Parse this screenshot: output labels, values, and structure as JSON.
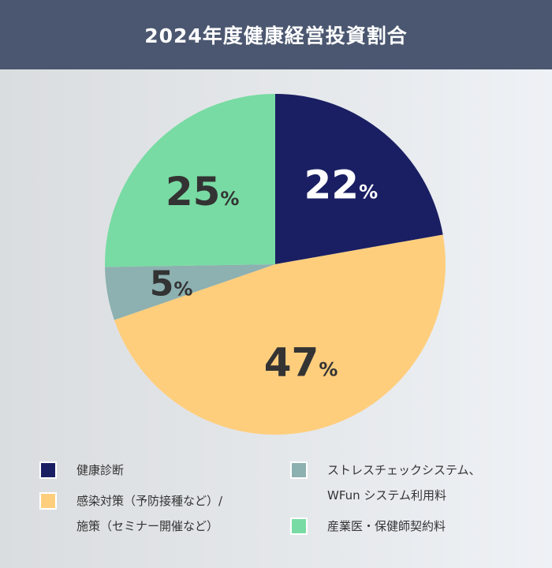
{
  "title": "2024年度健康経営投資割合",
  "chart_data": {
    "type": "pie",
    "title": "2024年度健康経営投資割合",
    "legend_position": "bottom",
    "slices": [
      {
        "label": "健康診断",
        "value": 22,
        "display": "22",
        "color": "#1a1f63",
        "text_color": "#ffffff"
      },
      {
        "label_lines": [
          "感染対策（予防接種など）/",
          "施策（セミナー開催など）"
        ],
        "label": "感染対策（予防接種など）/施策（セミナー開催など）",
        "value": 47,
        "display": "47",
        "color": "#ffce7d",
        "text_color": "#333333"
      },
      {
        "label_lines": [
          "ストレスチェックシステム、",
          "WFun システム利用料"
        ],
        "label": "ストレスチェックシステム、WFun システム利用料",
        "value": 5,
        "display": "5",
        "color": "#8db0b0",
        "text_color": "#333333"
      },
      {
        "label": "産業医・保健師契約料",
        "value": 25,
        "display": "25",
        "color": "#78dba3",
        "text_color": "#333333"
      }
    ],
    "unit": "%"
  }
}
